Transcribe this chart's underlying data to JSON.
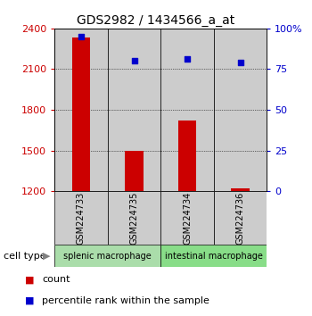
{
  "title": "GDS2982 / 1434566_a_at",
  "samples": [
    "GSM224733",
    "GSM224735",
    "GSM224734",
    "GSM224736"
  ],
  "counts": [
    2330,
    1500,
    1720,
    1220
  ],
  "percentiles": [
    95,
    80,
    81,
    79
  ],
  "ylim_left": [
    1200,
    2400
  ],
  "ylim_right": [
    0,
    100
  ],
  "yticks_left": [
    1200,
    1500,
    1800,
    2100,
    2400
  ],
  "yticks_right": [
    0,
    25,
    50,
    75,
    100
  ],
  "ytick_labels_right": [
    "0",
    "25",
    "50",
    "75",
    "100%"
  ],
  "cell_types": [
    {
      "label": "splenic macrophage",
      "indices": [
        0,
        1
      ],
      "color": "#aaddaa"
    },
    {
      "label": "intestinal macrophage",
      "indices": [
        2,
        3
      ],
      "color": "#88dd88"
    }
  ],
  "bar_color": "#cc0000",
  "dot_color": "#0000cc",
  "bar_width": 0.35,
  "bar_bg_color": "#cccccc",
  "label_color_left": "#cc0000",
  "label_color_right": "#0000cc",
  "legend_count_label": "count",
  "legend_percentile_label": "percentile rank within the sample",
  "cell_type_label": "cell type"
}
